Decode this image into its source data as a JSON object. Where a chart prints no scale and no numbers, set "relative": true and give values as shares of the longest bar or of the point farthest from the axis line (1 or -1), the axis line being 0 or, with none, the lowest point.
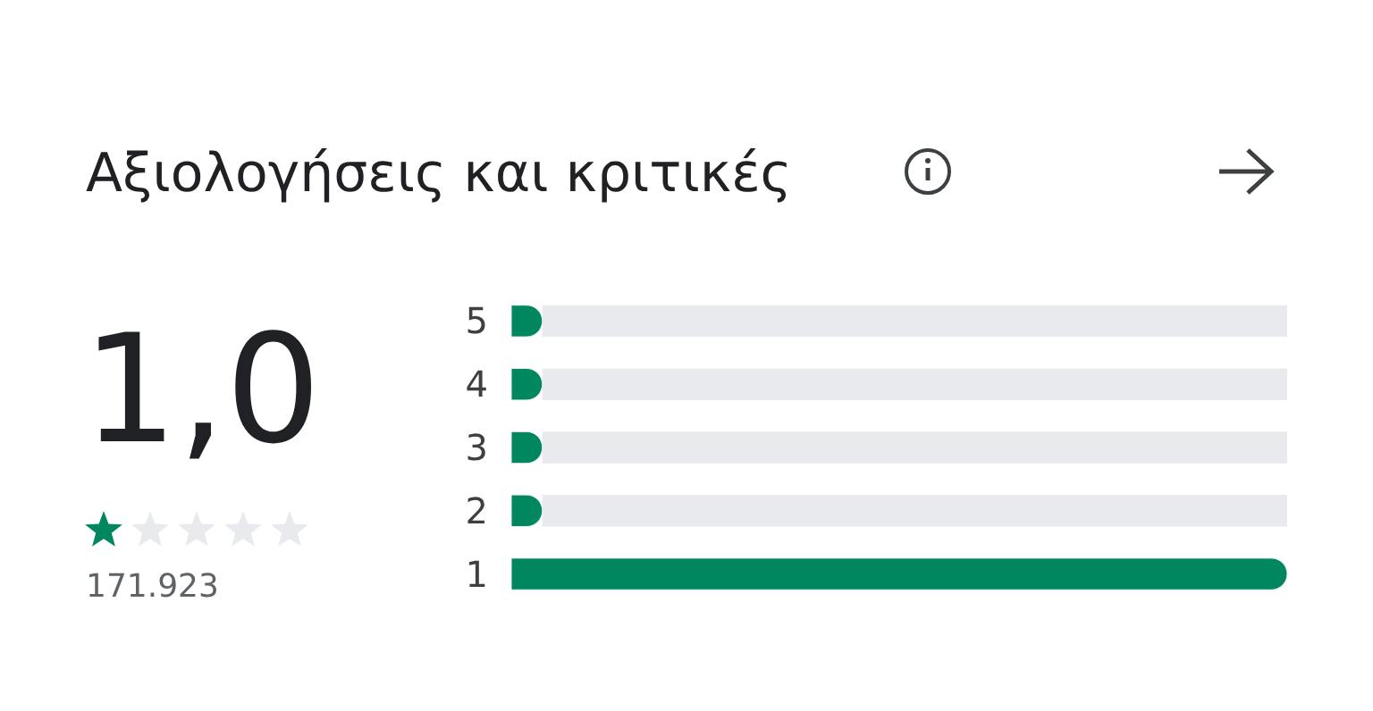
{
  "chart_data": {
    "type": "bar",
    "orientation": "horizontal",
    "relative": true,
    "title": "Αξιολογήσεις και κριτικές",
    "categories": [
      "5",
      "4",
      "3",
      "2",
      "1"
    ],
    "values": [
      0.04,
      0.04,
      0.04,
      0.04,
      1
    ],
    "color": "#01875f",
    "annotations": [
      "1,0",
      "171.923"
    ],
    "legend": false,
    "tick_labels": "y"
  }
}
